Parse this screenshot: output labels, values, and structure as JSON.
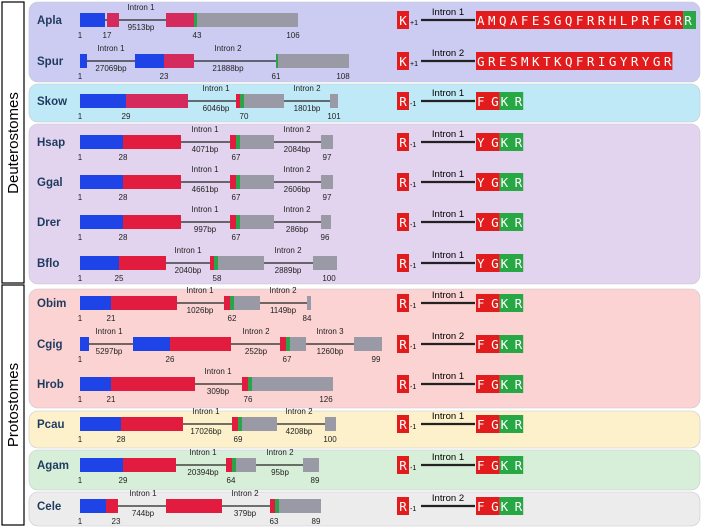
{
  "groups": [
    {
      "label": "Deuterostomes"
    },
    {
      "label": "Protostomes"
    }
  ],
  "colors": {
    "exon_blue": "#1e43e6",
    "exon_red": "#e21c3f",
    "exon_magenta": "#d42a5e",
    "exon_green": "#2aa44a",
    "exon_grey": "#9a9aa6",
    "residue_red": "#e21c1c",
    "residue_green": "#28a745",
    "intron_line": "#222222"
  },
  "rows": [
    {
      "name": "Apla",
      "bg": "#ccccf2",
      "gene": {
        "pos": [
          "1",
          "17",
          "43",
          "106"
        ],
        "introns": [
          {
            "label": "Intron 1",
            "bp": "9513bp"
          }
        ]
      },
      "right": {
        "left_res": "K",
        "phase": "+1",
        "intron": "Intron 1",
        "residues": "AMQAFESGQFRRHLPRFGR",
        "green": "R"
      }
    },
    {
      "name": "Spur",
      "bg": "#ccccf2",
      "gene": {
        "pos": [
          "1",
          "23",
          "61",
          "108"
        ],
        "introns": [
          {
            "label": "Intron 1",
            "bp": "27069bp"
          },
          {
            "label": "Intron 2",
            "bp": "21888bp"
          }
        ]
      },
      "right": {
        "left_res": "K",
        "phase": "+1",
        "intron": "Intron 2",
        "residues": "GRESMKTKQFRIGYRYGR",
        "green": ""
      }
    },
    {
      "name": "Skow",
      "bg": "#bfe9f6",
      "gene": {
        "pos": [
          "1",
          "29",
          "70",
          "101"
        ],
        "introns": [
          {
            "label": "Intron 1",
            "bp": "6046bp"
          },
          {
            "label": "Intron 2",
            "bp": "1801bp"
          }
        ]
      },
      "right": {
        "left_res": "R",
        "phase": "-1",
        "intron": "Intron 1",
        "residues": "FG",
        "green": "KR"
      }
    },
    {
      "name": "Hsap",
      "bg": "#e2d3ee",
      "gene": {
        "pos": [
          "1",
          "28",
          "67",
          "97"
        ],
        "introns": [
          {
            "label": "Intron 1",
            "bp": "4071bp"
          },
          {
            "label": "Intron 2",
            "bp": "2084bp"
          }
        ]
      },
      "right": {
        "left_res": "R",
        "phase": "-1",
        "intron": "Intron 1",
        "residues": "YG",
        "green": "KR"
      }
    },
    {
      "name": "Ggal",
      "bg": "#e2d3ee",
      "gene": {
        "pos": [
          "1",
          "28",
          "67",
          "97"
        ],
        "introns": [
          {
            "label": "Intron 1",
            "bp": "4661bp"
          },
          {
            "label": "Intron 2",
            "bp": "2606bp"
          }
        ]
      },
      "right": {
        "left_res": "R",
        "phase": "-1",
        "intron": "Intron 1",
        "residues": "YG",
        "green": "KR"
      }
    },
    {
      "name": "Drer",
      "bg": "#e2d3ee",
      "gene": {
        "pos": [
          "1",
          "28",
          "67",
          "96"
        ],
        "introns": [
          {
            "label": "Intron 1",
            "bp": "997bp"
          },
          {
            "label": "Intron 2",
            "bp": "286bp"
          }
        ]
      },
      "right": {
        "left_res": "R",
        "phase": "-1",
        "intron": "Intron 1",
        "residues": "YG",
        "green": "KR"
      }
    },
    {
      "name": "Bflo",
      "bg": "#e2d3ee",
      "gene": {
        "pos": [
          "1",
          "25",
          "58",
          "100"
        ],
        "introns": [
          {
            "label": "Intron 1",
            "bp": "2040bp"
          },
          {
            "label": "Intron 2",
            "bp": "2889bp"
          }
        ]
      },
      "right": {
        "left_res": "R",
        "phase": "-1",
        "intron": "Intron 1",
        "residues": "YG",
        "green": "KR"
      }
    },
    {
      "name": "Obim",
      "bg": "#fbd3d3",
      "gene": {
        "pos": [
          "1",
          "21",
          "62",
          "84"
        ],
        "introns": [
          {
            "label": "Intron 1",
            "bp": "1026bp"
          },
          {
            "label": "Intron 2",
            "bp": "1149bp"
          }
        ]
      },
      "right": {
        "left_res": "R",
        "phase": "-1",
        "intron": "Intron 1",
        "residues": "FG",
        "green": "KR"
      }
    },
    {
      "name": "Cgig",
      "bg": "#fbd3d3",
      "gene": {
        "pos": [
          "1",
          "26",
          "67",
          "99"
        ],
        "introns": [
          {
            "label": "Intron 1",
            "bp": "5297bp"
          },
          {
            "label": "Intron 2",
            "bp": "252bp"
          },
          {
            "label": "Intron 3",
            "bp": "1260bp"
          }
        ]
      },
      "right": {
        "left_res": "R",
        "phase": "-1",
        "intron": "Intron 2",
        "residues": "FG",
        "green": "KR"
      }
    },
    {
      "name": "Hrob",
      "bg": "#fbd3d3",
      "gene": {
        "pos": [
          "1",
          "21",
          "76",
          "126"
        ],
        "introns": [
          {
            "label": "Intron 1",
            "bp": "309bp"
          }
        ]
      },
      "right": {
        "left_res": "R",
        "phase": "-1",
        "intron": "Intron 1",
        "residues": "FG",
        "green": "KR"
      }
    },
    {
      "name": "Pcau",
      "bg": "#fdf1cc",
      "gene": {
        "pos": [
          "1",
          "28",
          "69",
          "100"
        ],
        "introns": [
          {
            "label": "Intron 1",
            "bp": "17026bp"
          },
          {
            "label": "Intron 2",
            "bp": "4208bp"
          }
        ]
      },
      "right": {
        "left_res": "R",
        "phase": "-1",
        "intron": "Intron 1",
        "residues": "FG",
        "green": "KR"
      }
    },
    {
      "name": "Agam",
      "bg": "#d7efd9",
      "gene": {
        "pos": [
          "1",
          "29",
          "64",
          "89"
        ],
        "introns": [
          {
            "label": "Intron 1",
            "bp": "20394bp"
          },
          {
            "label": "Intron 2",
            "bp": "95bp"
          }
        ]
      },
      "right": {
        "left_res": "R",
        "phase": "-1",
        "intron": "Intron 1",
        "residues": "FG",
        "green": "KR"
      }
    },
    {
      "name": "Cele",
      "bg": "#ececec",
      "gene": {
        "pos": [
          "1",
          "23",
          "63",
          "89"
        ],
        "introns": [
          {
            "label": "Intron 1",
            "bp": "744bp"
          },
          {
            "label": "Intron 2",
            "bp": "379bp"
          }
        ]
      },
      "right": {
        "left_res": "R",
        "phase": "-1",
        "intron": "Intron 2",
        "residues": "FG",
        "green": "KR"
      }
    }
  ]
}
